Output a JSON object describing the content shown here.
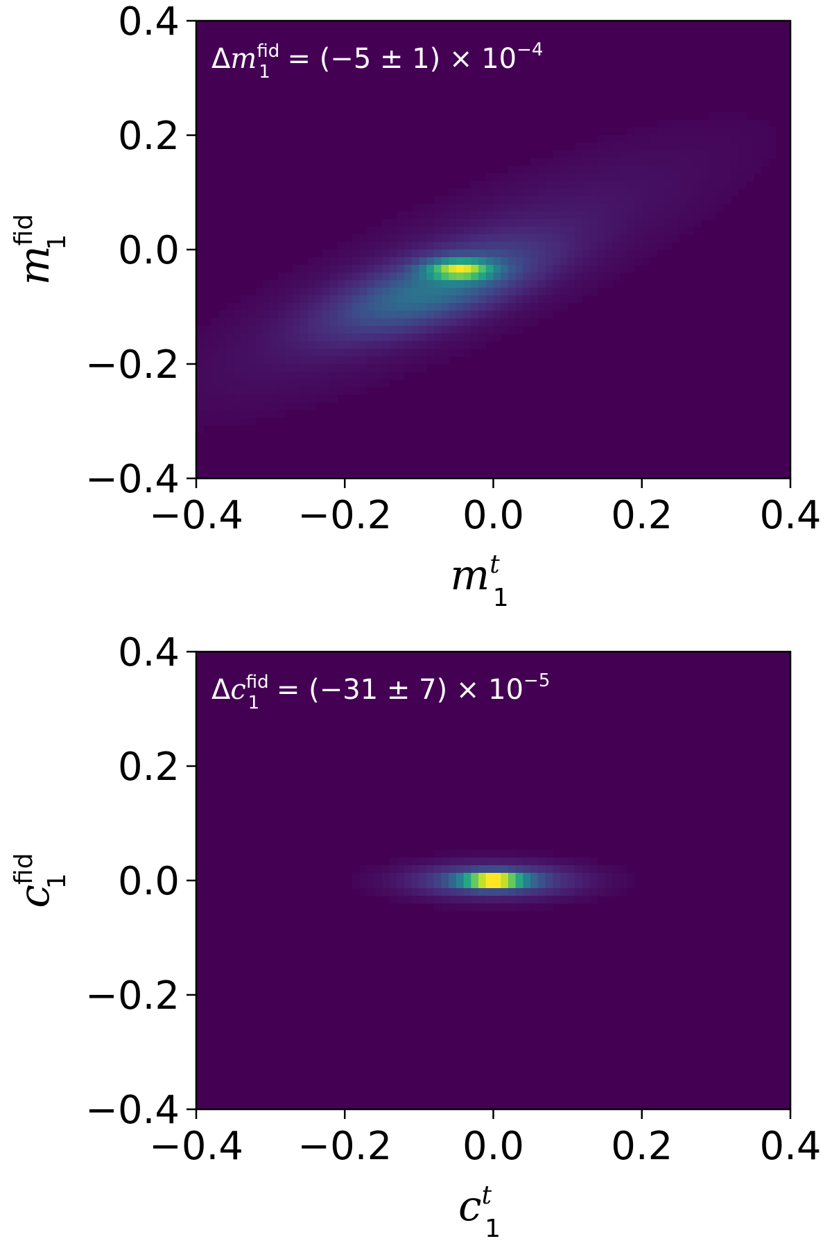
{
  "chart_data": [
    {
      "type": "heatmap",
      "colormap": "viridis",
      "background_color": "#440154",
      "xlabel": {
        "symbol": "m",
        "subscript": "1",
        "superscript": "t"
      },
      "ylabel": {
        "symbol": "m",
        "subscript": "1",
        "superscript": "fid"
      },
      "xlim": [
        -0.4,
        0.4
      ],
      "ylim": [
        -0.4,
        0.4
      ],
      "x_ticks": [
        -0.4,
        -0.2,
        0.0,
        0.2,
        0.4
      ],
      "y_ticks": [
        -0.4,
        -0.2,
        0.0,
        0.2,
        0.4
      ],
      "x_tick_labels": [
        "−0.4",
        "−0.2",
        "0.0",
        "0.2",
        "0.4"
      ],
      "y_tick_labels": [
        "−0.4",
        "−0.2",
        "0.0",
        "0.2",
        "0.4"
      ],
      "annotation": {
        "prefix": "Δ",
        "symbol": "m",
        "subscript": "1",
        "superscript": "fid",
        "expression": " = (−5 ± 1) × 10",
        "exponent": "−4"
      },
      "density_components": [
        {
          "x": -0.045,
          "y": -0.035,
          "sx": 0.03,
          "sy": 0.012,
          "rho": 0.0,
          "weight": 1.0
        },
        {
          "x": -0.08,
          "y": -0.07,
          "sx": 0.09,
          "sy": 0.05,
          "rho": 0.65,
          "weight": 0.45
        },
        {
          "x": -0.05,
          "y": -0.04,
          "sx": 0.22,
          "sy": 0.14,
          "rho": 0.85,
          "weight": 0.12
        }
      ]
    },
    {
      "type": "heatmap",
      "colormap": "viridis",
      "background_color": "#440154",
      "xlabel": {
        "symbol": "c",
        "subscript": "1",
        "superscript": "t"
      },
      "ylabel": {
        "symbol": "c",
        "subscript": "1",
        "superscript": "fid"
      },
      "xlim": [
        -0.4,
        0.4
      ],
      "ylim": [
        -0.4,
        0.4
      ],
      "x_ticks": [
        -0.4,
        -0.2,
        0.0,
        0.2,
        0.4
      ],
      "y_ticks": [
        -0.4,
        -0.2,
        0.0,
        0.2,
        0.4
      ],
      "x_tick_labels": [
        "−0.4",
        "−0.2",
        "0.0",
        "0.2",
        "0.4"
      ],
      "y_tick_labels": [
        "−0.4",
        "−0.2",
        "0.0",
        "0.2",
        "0.4"
      ],
      "annotation": {
        "prefix": "Δ",
        "symbol": "c",
        "subscript": "1",
        "superscript": "fid",
        "expression": " = (−31 ± 7) × 10",
        "exponent": "−5"
      },
      "density_components": [
        {
          "x": 0.0,
          "y": 0.0,
          "sx": 0.028,
          "sy": 0.008,
          "rho": 0.0,
          "weight": 1.0
        },
        {
          "x": 0.0,
          "y": 0.0,
          "sx": 0.075,
          "sy": 0.02,
          "rho": 0.0,
          "weight": 0.3
        }
      ]
    }
  ]
}
